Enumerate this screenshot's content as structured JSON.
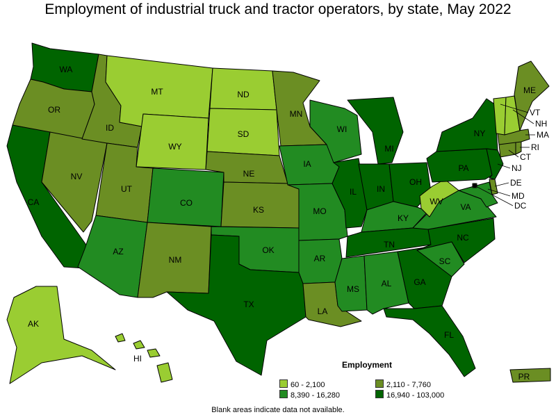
{
  "title": "Employment of industrial truck and tractor operators, by state, May 2022",
  "legend": {
    "title": "Employment",
    "ranges": [
      {
        "label": "60 - 2,100",
        "color": "#9acd32"
      },
      {
        "label": "2,110 - 7,760",
        "color": "#6b8e23"
      },
      {
        "label": "8,390 - 16,280",
        "color": "#228b22"
      },
      {
        "label": "16,940 - 103,000",
        "color": "#006400"
      }
    ]
  },
  "footnote": "Blank areas indicate data not available.",
  "states": [
    {
      "abbr": "WA",
      "class": 3
    },
    {
      "abbr": "OR",
      "class": 1
    },
    {
      "abbr": "CA",
      "class": 3
    },
    {
      "abbr": "NV",
      "class": 1
    },
    {
      "abbr": "ID",
      "class": 1
    },
    {
      "abbr": "MT",
      "class": 0
    },
    {
      "abbr": "WY",
      "class": 0
    },
    {
      "abbr": "UT",
      "class": 1
    },
    {
      "abbr": "AZ",
      "class": 2
    },
    {
      "abbr": "CO",
      "class": 2
    },
    {
      "abbr": "NM",
      "class": 1
    },
    {
      "abbr": "ND",
      "class": 0
    },
    {
      "abbr": "SD",
      "class": 0
    },
    {
      "abbr": "NE",
      "class": 1
    },
    {
      "abbr": "KS",
      "class": 1
    },
    {
      "abbr": "OK",
      "class": 2
    },
    {
      "abbr": "TX",
      "class": 3
    },
    {
      "abbr": "MN",
      "class": 1
    },
    {
      "abbr": "IA",
      "class": 2
    },
    {
      "abbr": "MO",
      "class": 2
    },
    {
      "abbr": "AR",
      "class": 2
    },
    {
      "abbr": "LA",
      "class": 1
    },
    {
      "abbr": "WI",
      "class": 2
    },
    {
      "abbr": "IL",
      "class": 3
    },
    {
      "abbr": "MI",
      "class": 3
    },
    {
      "abbr": "IN",
      "class": 3
    },
    {
      "abbr": "OH",
      "class": 3
    },
    {
      "abbr": "KY",
      "class": 2
    },
    {
      "abbr": "TN",
      "class": 3
    },
    {
      "abbr": "MS",
      "class": 2
    },
    {
      "abbr": "AL",
      "class": 2
    },
    {
      "abbr": "GA",
      "class": 3
    },
    {
      "abbr": "FL",
      "class": 3
    },
    {
      "abbr": "SC",
      "class": 2
    },
    {
      "abbr": "NC",
      "class": 3
    },
    {
      "abbr": "VA",
      "class": 2
    },
    {
      "abbr": "WV",
      "class": 0
    },
    {
      "abbr": "PA",
      "class": 3
    },
    {
      "abbr": "NY",
      "class": 3
    },
    {
      "abbr": "NJ",
      "class": 3
    },
    {
      "abbr": "DE",
      "class": 1
    },
    {
      "abbr": "MD",
      "class": 2
    },
    {
      "abbr": "DC",
      "class": 0
    },
    {
      "abbr": "CT",
      "class": 1
    },
    {
      "abbr": "RI",
      "class": 1
    },
    {
      "abbr": "MA",
      "class": 1
    },
    {
      "abbr": "VT",
      "class": 0
    },
    {
      "abbr": "NH",
      "class": 0
    },
    {
      "abbr": "ME",
      "class": 1
    },
    {
      "abbr": "AK",
      "class": 0
    },
    {
      "abbr": "HI",
      "class": 0
    },
    {
      "abbr": "PR",
      "class": 1
    }
  ]
}
